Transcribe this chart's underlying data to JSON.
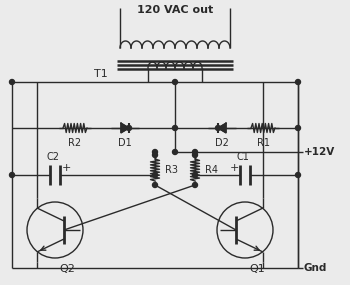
{
  "bg_color": "#ebebeb",
  "line_color": "#2a2a2a",
  "label_color": "#000000",
  "figsize": [
    3.5,
    2.85
  ],
  "dpi": 100,
  "title": "120 VAC out",
  "labels": {
    "T1": "T1",
    "R2": "R2",
    "D1": "D1",
    "D2": "D2",
    "R1": "R1",
    "C2": "C2",
    "R3": "R3",
    "R4": "R4",
    "C1": "C1",
    "Q2": "Q2",
    "Q1": "Q1",
    "plus12V": "+12V",
    "gnd": "Gnd"
  }
}
